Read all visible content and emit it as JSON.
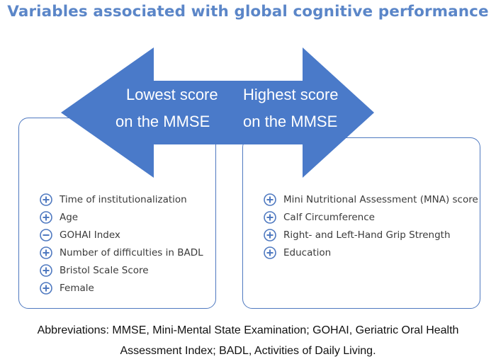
{
  "title": "Variables associated with global cognitive performance",
  "arrow": {
    "left_line1": "Lowest score",
    "left_line2": "on the MMSE",
    "right_line1": "Highest score",
    "right_line2": "on the MMSE",
    "color": "#4a7ac9"
  },
  "left_items": [
    {
      "label": "Time of institutionalization",
      "sign": "plus"
    },
    {
      "label": "Age",
      "sign": "plus"
    },
    {
      "label": "GOHAI Index",
      "sign": "minus"
    },
    {
      "label": "Number of difficulties in BADL",
      "sign": "plus"
    },
    {
      "label": "Bristol Scale Score",
      "sign": "plus"
    },
    {
      "label": "Female",
      "sign": "plus"
    }
  ],
  "right_items": [
    {
      "label": "Mini Nutritional Assessment (MNA) score",
      "sign": "plus"
    },
    {
      "label": "Calf Circumference",
      "sign": "plus"
    },
    {
      "label": "Right- and Left-Hand Grip Strength",
      "sign": "plus"
    },
    {
      "label": "Education",
      "sign": "plus"
    }
  ],
  "footnote": {
    "line1": "Abbreviations: MMSE, Mini-Mental State Examination; GOHAI, Geriatric Oral Health",
    "line2": "Assessment Index; BADL, Activities of Daily Living."
  },
  "colors": {
    "title": "#5b86c8",
    "accent": "#4a7ac9",
    "icon": "#4f79c0"
  }
}
